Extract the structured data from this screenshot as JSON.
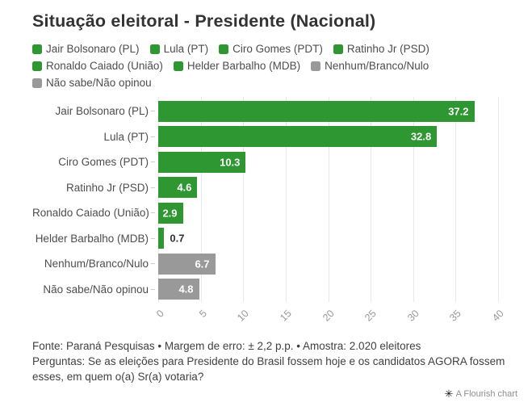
{
  "title": "Situação eleitoral - Presidente (Nacional)",
  "colors": {
    "green": "#2e9732",
    "gray": "#999999"
  },
  "legend": {
    "items": [
      {
        "label": "Jair Bolsonaro (PL)",
        "color": "#2e9732"
      },
      {
        "label": "Lula (PT)",
        "color": "#2e9732"
      },
      {
        "label": "Ciro Gomes (PDT)",
        "color": "#2e9732"
      },
      {
        "label": "Ratinho Jr (PSD)",
        "color": "#2e9732"
      },
      {
        "label": "Ronaldo Caiado (União)",
        "color": "#2e9732"
      },
      {
        "label": "Helder Barbalho (MDB)",
        "color": "#2e9732"
      },
      {
        "label": "Nenhum/Branco/Nulo",
        "color": "#999999"
      },
      {
        "label": "Não sabe/Não opinou",
        "color": "#999999"
      }
    ]
  },
  "chart_data": {
    "type": "bar",
    "orientation": "horizontal",
    "title": "Situação eleitoral - Presidente (Nacional)",
    "categories": [
      "Jair Bolsonaro (PL)",
      "Lula (PT)",
      "Ciro Gomes (PDT)",
      "Ratinho Jr (PSD)",
      "Ronaldo Caiado (União)",
      "Helder Barbalho (MDB)",
      "Nenhum/Branco/Nulo",
      "Não sabe/Não opinou"
    ],
    "values": [
      37.2,
      32.8,
      10.3,
      4.6,
      2.9,
      0.7,
      6.7,
      4.8
    ],
    "bar_colors": [
      "#2e9732",
      "#2e9732",
      "#2e9732",
      "#2e9732",
      "#2e9732",
      "#2e9732",
      "#999999",
      "#999999"
    ],
    "xlim": [
      0,
      40
    ],
    "x_ticks": [
      0,
      5,
      10,
      15,
      20,
      25,
      30,
      35,
      40
    ],
    "grid": true,
    "legend_position": "top",
    "value_labels": true
  },
  "bars": [
    {
      "label": "Jair Bolsonaro (PL)",
      "value": 37.2,
      "display": "37.2",
      "color": "#2e9732",
      "label_position": "inside"
    },
    {
      "label": "Lula (PT)",
      "value": 32.8,
      "display": "32.8",
      "color": "#2e9732",
      "label_position": "inside"
    },
    {
      "label": "Ciro Gomes (PDT)",
      "value": 10.3,
      "display": "10.3",
      "color": "#2e9732",
      "label_position": "inside"
    },
    {
      "label": "Ratinho Jr (PSD)",
      "value": 4.6,
      "display": "4.6",
      "color": "#2e9732",
      "label_position": "inside"
    },
    {
      "label": "Ronaldo Caiado (União)",
      "value": 2.9,
      "display": "2.9",
      "color": "#2e9732",
      "label_position": "inside"
    },
    {
      "label": "Helder Barbalho (MDB)",
      "value": 0.7,
      "display": "0.7",
      "color": "#2e9732",
      "label_position": "outside"
    },
    {
      "label": "Nenhum/Branco/Nulo",
      "value": 6.7,
      "display": "6.7",
      "color": "#999999",
      "label_position": "inside"
    },
    {
      "label": "Não sabe/Não opinou",
      "value": 4.8,
      "display": "4.8",
      "color": "#999999",
      "label_position": "inside"
    }
  ],
  "axis": {
    "ticks": [
      "0",
      "5",
      "10",
      "15",
      "20",
      "25",
      "30",
      "35",
      "40"
    ]
  },
  "footer": {
    "line1": "Fonte: Paraná Pesquisas • Margem de erro: ± 2,2 p.p. • Amostra: 2.020 eleitores",
    "line2": "Perguntas: Se as eleições para Presidente do Brasil fossem hoje e os candidatos AGORA fossem esses, em quem o(a) Sr(a) votaria?"
  },
  "credit": {
    "icon": "flourish-star",
    "label": "A Flourish chart"
  }
}
